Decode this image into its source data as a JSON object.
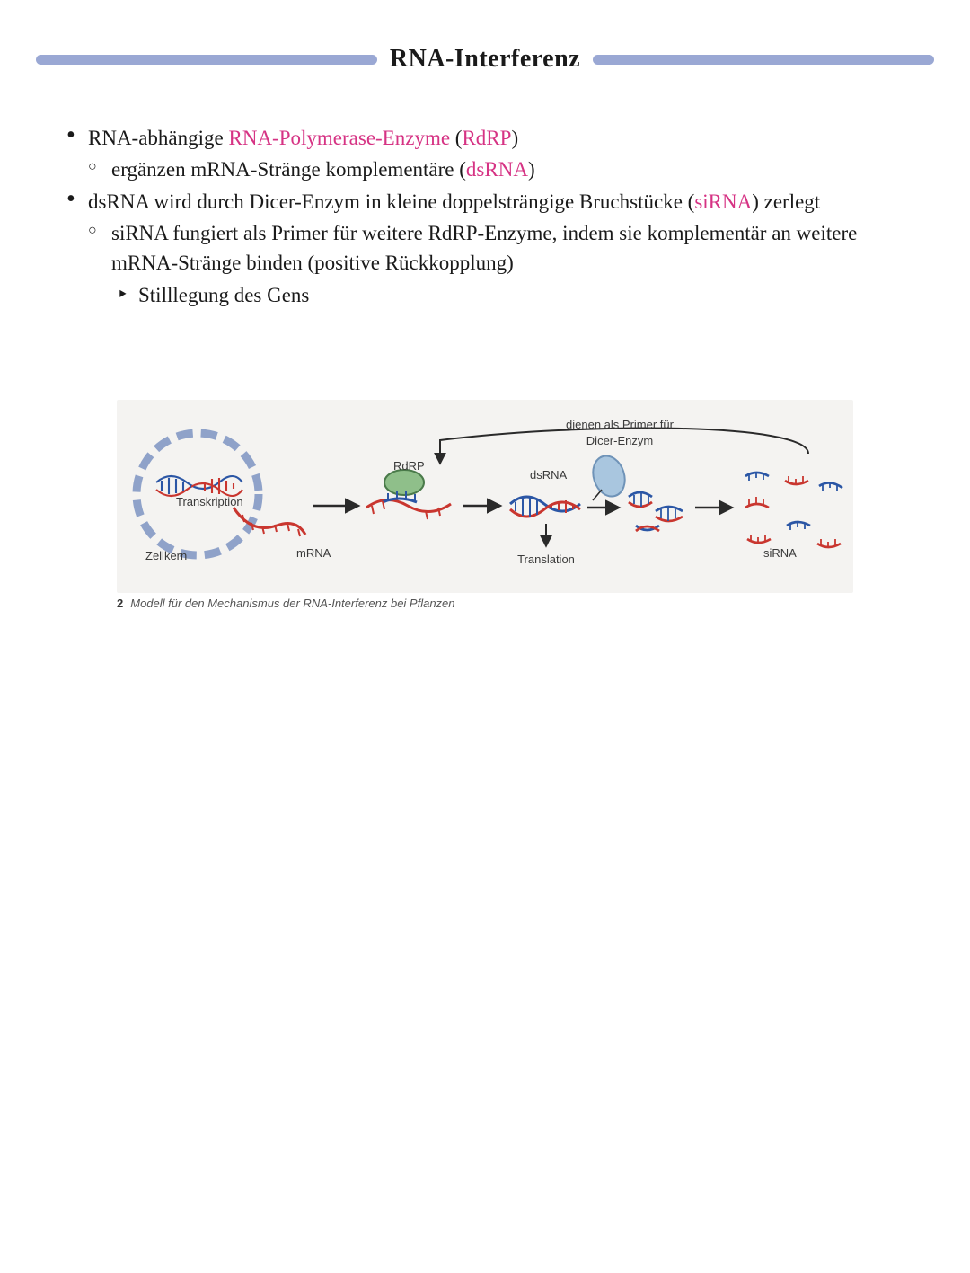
{
  "header": {
    "title": "RNA-Interferenz",
    "title_fontsize": 28,
    "title_color": "#1a1a1a",
    "rule_color": "#9aa8d4"
  },
  "body_fontsize": 23,
  "highlight_color": "#d63384",
  "bullets": [
    {
      "segments": [
        {
          "text": "RNA-abhängige ",
          "hl": false
        },
        {
          "text": "RNA-Polymerase-Enzyme",
          "hl": true
        },
        {
          "text": " (",
          "hl": false
        },
        {
          "text": "RdRP",
          "hl": true
        },
        {
          "text": ")",
          "hl": false
        }
      ],
      "children": [
        {
          "segments": [
            {
              "text": "ergänzen mRNA-Stränge komplementäre (",
              "hl": false
            },
            {
              "text": "dsRNA",
              "hl": true
            },
            {
              "text": ")",
              "hl": false
            }
          ]
        }
      ]
    },
    {
      "segments": [
        {
          "text": "dsRNA wird durch Dicer-Enzym in kleine doppelsträngige Bruchstücke (",
          "hl": false
        },
        {
          "text": "siRNA",
          "hl": true
        },
        {
          "text": ") zerlegt",
          "hl": false
        }
      ],
      "children": [
        {
          "segments": [
            {
              "text": "siRNA fungiert als Primer für weitere RdRP-Enzyme, indem sie komplementär an weitere mRNA-Stränge binden (positive Rückkopplung)",
              "hl": false
            }
          ],
          "children": [
            {
              "segments": [
                {
                  "text": "Stilllegung des Gens",
                  "hl": false
                }
              ]
            }
          ]
        }
      ]
    }
  ],
  "figure": {
    "background": "#f4f3f1",
    "caption_number": "2",
    "caption_text": "Modell für den Mechanismus der RNA-Interferenz bei Pflanzen",
    "label_fontsize": 13,
    "label_color": "#3a3a3a",
    "colors": {
      "membrane": "#8fa2c9",
      "dna_blue": "#2b56a5",
      "rna_red": "#c9362f",
      "rdrp_fill": "#8fbf8a",
      "rdrp_stroke": "#4a7a4a",
      "dicer_fill": "#a9c6df",
      "dicer_stroke": "#6f93b8",
      "arrow": "#2a2a2a"
    },
    "labels": {
      "transkription": "Transkription",
      "zellkern": "Zellkern",
      "mrna": "mRNA",
      "rdrp": "RdRP",
      "dsrna": "dsRNA",
      "translation": "Translation",
      "primer1": "dienen als Primer für",
      "dicer": "Dicer-Enzym",
      "sirna": "siRNA"
    }
  }
}
